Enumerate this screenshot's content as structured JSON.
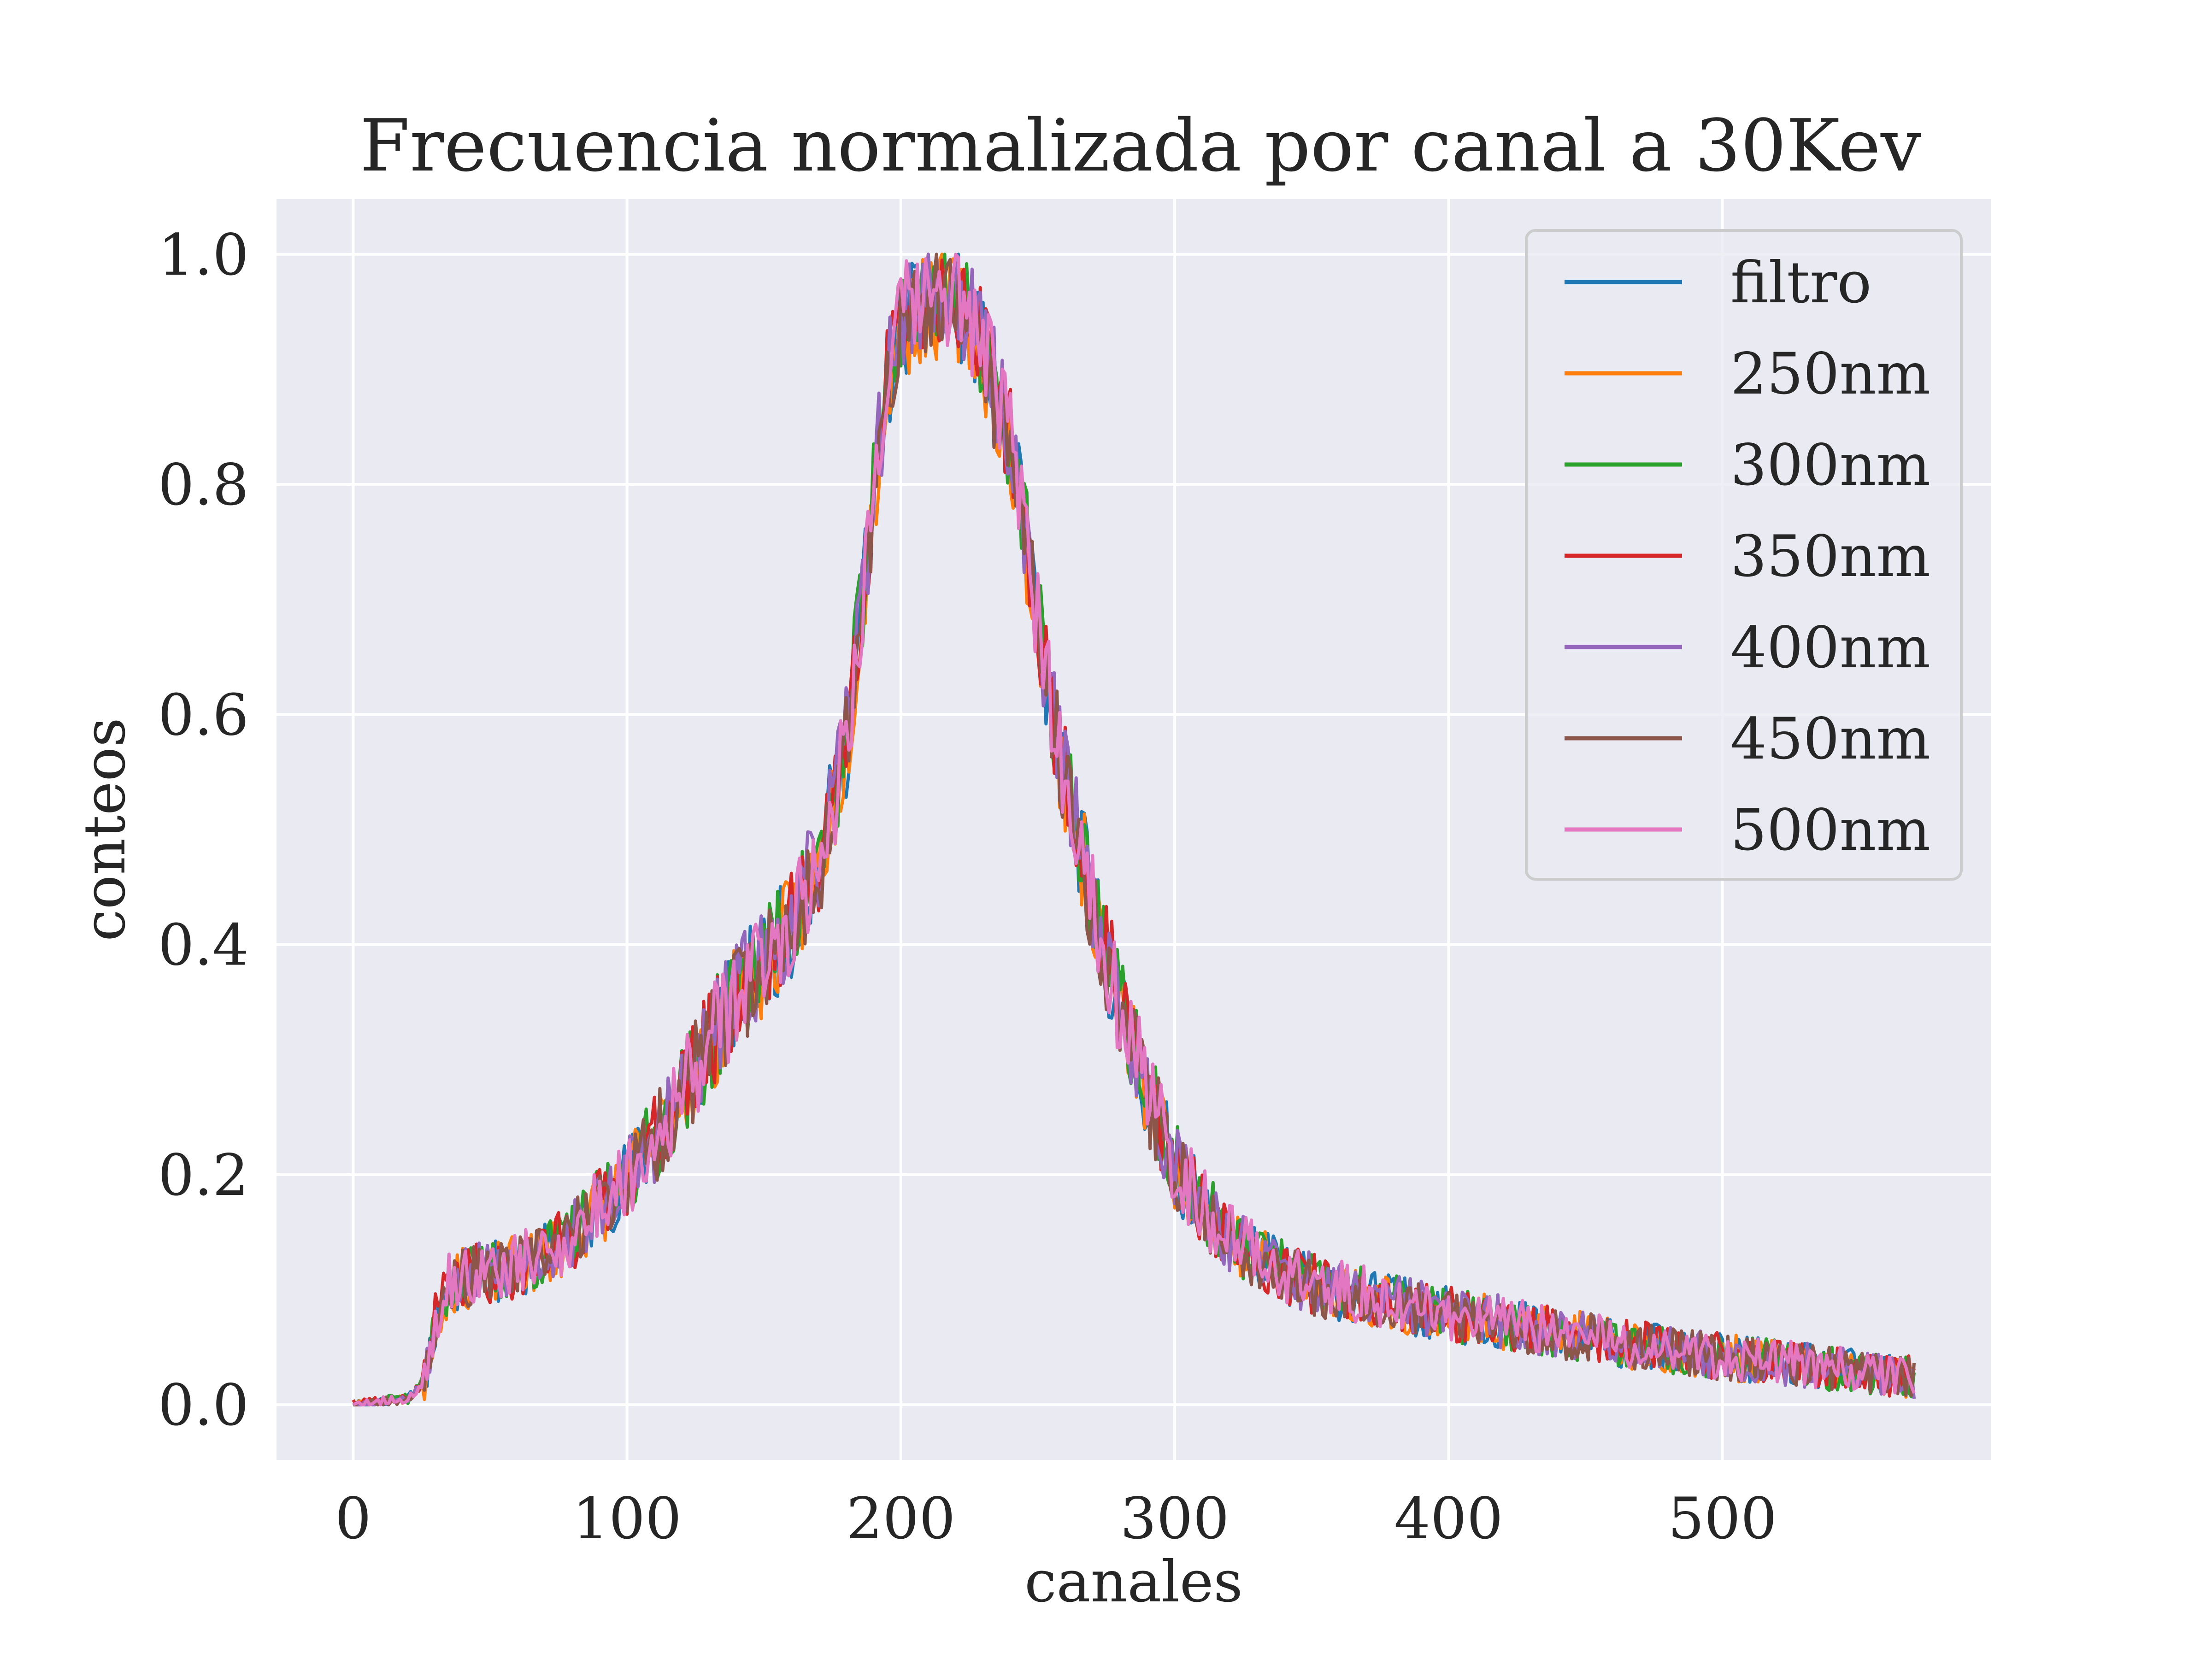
{
  "chart_data": {
    "type": "line",
    "title": "Frecuencia normalizada por canal a 30Kev",
    "xlabel": "canales",
    "ylabel": "conteos",
    "xlim": [
      -28,
      598
    ],
    "ylim": [
      -0.048,
      1.048
    ],
    "xticks": [
      0,
      100,
      200,
      300,
      400,
      500
    ],
    "yticks": [
      0.0,
      0.2,
      0.4,
      0.6,
      0.8,
      1.0
    ],
    "xtick_labels": [
      "0",
      "100",
      "200",
      "300",
      "400",
      "500"
    ],
    "ytick_labels": [
      "0.0",
      "0.2",
      "0.4",
      "0.6",
      "0.8",
      "1.0"
    ],
    "grid": true,
    "legend_position": "top-right",
    "colors": {
      "background": "#eaeaf2",
      "grid": "#ffffff",
      "text": "#262626",
      "legend_border": "#cccccc"
    },
    "x_range": [
      0,
      570
    ],
    "envelope": {
      "x": [
        0,
        10,
        20,
        26,
        30,
        35,
        40,
        50,
        60,
        70,
        80,
        90,
        100,
        110,
        120,
        130,
        140,
        150,
        160,
        170,
        180,
        185,
        190,
        195,
        200,
        210,
        220,
        230,
        240,
        245,
        250,
        255,
        260,
        270,
        280,
        290,
        300,
        310,
        320,
        330,
        340,
        350,
        360,
        370,
        380,
        400,
        420,
        440,
        460,
        480,
        500,
        520,
        540,
        560,
        570
      ],
      "y": [
        0.0,
        0.003,
        0.005,
        0.02,
        0.07,
        0.1,
        0.105,
        0.11,
        0.115,
        0.125,
        0.14,
        0.165,
        0.19,
        0.22,
        0.26,
        0.3,
        0.34,
        0.37,
        0.4,
        0.45,
        0.55,
        0.65,
        0.76,
        0.85,
        0.9,
        0.92,
        0.92,
        0.88,
        0.8,
        0.73,
        0.65,
        0.58,
        0.52,
        0.42,
        0.33,
        0.26,
        0.2,
        0.165,
        0.14,
        0.125,
        0.11,
        0.1,
        0.095,
        0.09,
        0.085,
        0.075,
        0.068,
        0.06,
        0.052,
        0.046,
        0.04,
        0.035,
        0.03,
        0.025,
        0.022
      ]
    },
    "series": [
      {
        "name": "filtro",
        "color": "#1f77b4",
        "noise": 0.045,
        "seed": 11
      },
      {
        "name": "250nm",
        "color": "#ff7f0e",
        "noise": 0.045,
        "seed": 23
      },
      {
        "name": "300nm",
        "color": "#2ca02c",
        "noise": 0.045,
        "seed": 37
      },
      {
        "name": "350nm",
        "color": "#d62728",
        "noise": 0.045,
        "seed": 41
      },
      {
        "name": "400nm",
        "color": "#9467bd",
        "noise": 0.045,
        "seed": 53
      },
      {
        "name": "450nm",
        "color": "#8c564b",
        "noise": 0.045,
        "seed": 67
      },
      {
        "name": "500nm",
        "color": "#e377c2",
        "noise": 0.045,
        "seed": 79
      }
    ]
  }
}
